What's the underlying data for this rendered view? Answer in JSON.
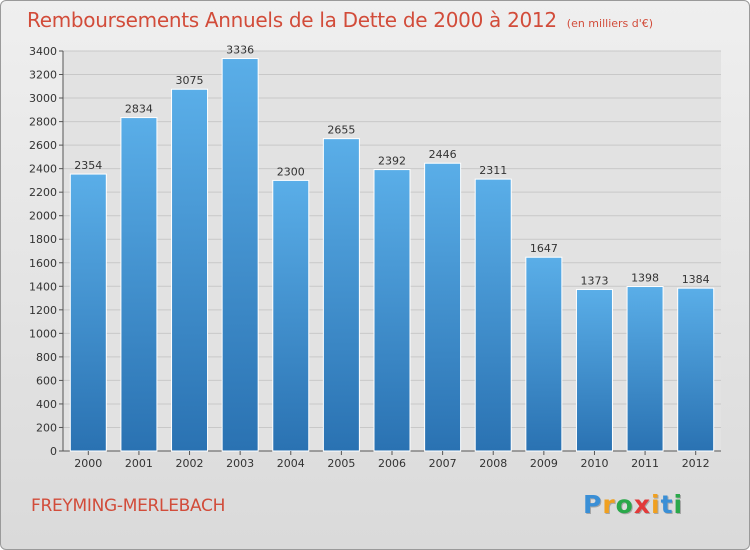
{
  "chart_data": {
    "type": "bar",
    "title": "Remboursements Annuels de la Dette de 2000 à 2012",
    "unit_note": "(en milliers d'€)",
    "categories": [
      "2000",
      "2001",
      "2002",
      "2003",
      "2004",
      "2005",
      "2006",
      "2007",
      "2008",
      "2009",
      "2010",
      "2011",
      "2012"
    ],
    "values": [
      2354,
      2834,
      3075,
      3336,
      2300,
      2655,
      2392,
      2446,
      2311,
      1647,
      1373,
      1398,
      1384
    ],
    "ylim": [
      0,
      3400
    ],
    "yticks": [
      0,
      200,
      400,
      600,
      800,
      1000,
      1200,
      1400,
      1600,
      1800,
      2000,
      2200,
      2400,
      2600,
      2800,
      3000,
      3200,
      3400
    ],
    "grid": true,
    "xlabel": "",
    "ylabel": "",
    "bar_color_top": "#5aaee8",
    "bar_color_bottom": "#2a72b2"
  },
  "footer": {
    "place": "FREYMING-MERLEBACH",
    "logo_letters": [
      "P",
      "r",
      "o",
      "x",
      "i",
      "t",
      "i"
    ],
    "logo_colors": [
      "#3a8fd6",
      "#f0a020",
      "#2aa84a",
      "#e23a3a",
      "#f0a020",
      "#3a8fd6",
      "#2aa84a"
    ]
  }
}
